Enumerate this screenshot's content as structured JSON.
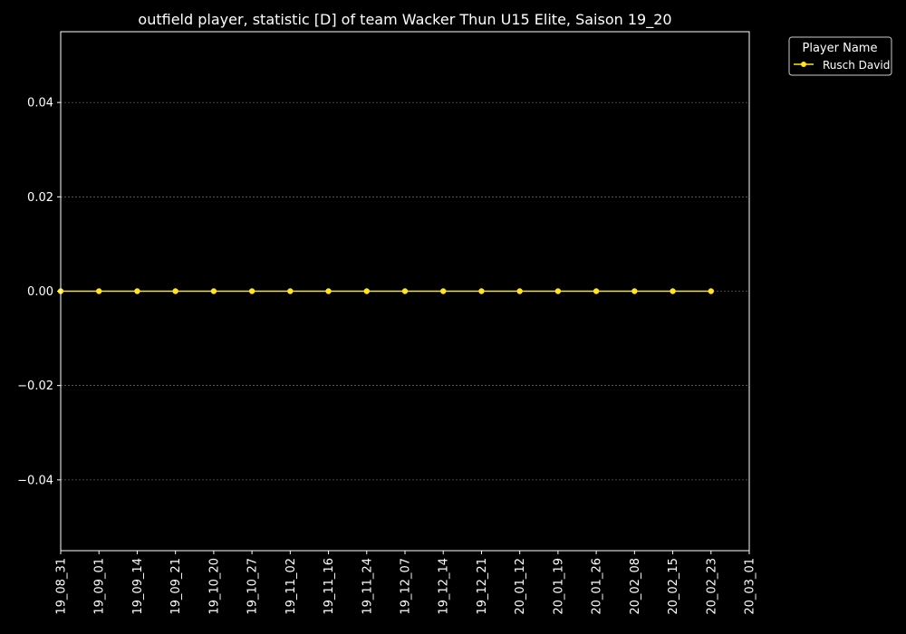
{
  "chart_data": {
    "type": "line",
    "title": "outfield player, statistic [D] of team Wacker Thun U15 Elite, Saison 19_20",
    "xlabel": "",
    "ylabel": "",
    "x_ticks": [
      "19_08_31",
      "19_09_01",
      "19_09_14",
      "19_09_21",
      "19_10_20",
      "19_10_27",
      "19_11_02",
      "19_11_16",
      "19_11_24",
      "19_12_07",
      "19_12_14",
      "19_12_21",
      "20_01_12",
      "20_01_19",
      "20_01_26",
      "20_02_08",
      "20_02_15",
      "20_02_23",
      "20_03_01"
    ],
    "y_ticks": [
      "0.04",
      "0.02",
      "0.00",
      "−0.02",
      "−0.04"
    ],
    "y_tick_values": [
      0.04,
      0.02,
      0.0,
      -0.02,
      -0.04
    ],
    "ylim": [
      -0.055,
      0.055
    ],
    "grid": true,
    "legend": {
      "title": "Player Name",
      "position": "outside-top-right"
    },
    "series": [
      {
        "name": "Rusch David",
        "color": "#ffe135",
        "x": [
          "19_08_31",
          "19_09_01",
          "19_09_14",
          "19_09_21",
          "19_10_20",
          "19_10_27",
          "19_11_02",
          "19_11_16",
          "19_11_24",
          "19_12_07",
          "19_12_14",
          "19_12_21",
          "20_01_12",
          "20_01_19",
          "20_01_26",
          "20_02_08",
          "20_02_15",
          "20_02_23"
        ],
        "values": [
          0,
          0,
          0,
          0,
          0,
          0,
          0,
          0,
          0,
          0,
          0,
          0,
          0,
          0,
          0,
          0,
          0,
          0
        ]
      }
    ]
  }
}
